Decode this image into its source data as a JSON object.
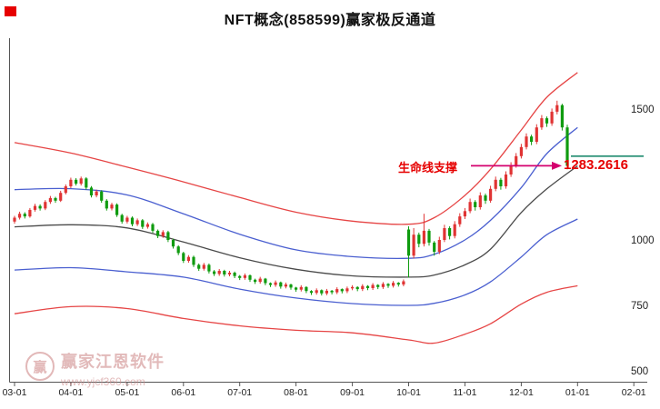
{
  "title": "NFT概念(858599)赢家极反通道",
  "annotation": {
    "label": "生命线支撑",
    "value": "1283.2616",
    "level": 1283.2616,
    "text_color": "#e60000",
    "arrow_color": "#d4006e"
  },
  "level_line": {
    "value": 1320,
    "color": "#1e8a6e"
  },
  "watermark": {
    "logo_char": "赢",
    "name": "赢家江恩软件",
    "url": "www.yjcf360.com"
  },
  "chart_data": {
    "type": "candlestick",
    "title": "NFT概念(858599)赢家极反通道",
    "ylim": [
      450,
      1700
    ],
    "grid": false,
    "colors": {
      "up": "#e03333",
      "down": "#0f9b0f",
      "axis": "#555555"
    },
    "y_axis": {
      "ticks": [
        1500,
        1000,
        750,
        500
      ]
    },
    "x_axis": {
      "tick_labels": [
        "03-01",
        "04-01",
        "05-01",
        "06-01",
        "07-01",
        "08-01",
        "09-01",
        "10-01",
        "11-01",
        "12-01",
        "01-01",
        "02-01"
      ],
      "tick_indices": [
        0,
        11,
        22,
        33,
        44,
        55,
        66,
        77,
        88,
        99,
        110,
        121
      ]
    },
    "channel_anchor_indices": [
      0,
      11,
      22,
      33,
      44,
      55,
      66,
      77,
      82,
      88,
      93,
      99,
      104,
      110
    ],
    "channels": [
      {
        "name": "outer-upper",
        "color": "#e64545",
        "values": [
          1372,
          1332,
          1278,
          1222,
          1162,
          1106,
          1072,
          1060,
          1085,
          1170,
          1270,
          1420,
          1545,
          1640
        ]
      },
      {
        "name": "inner-upper",
        "color": "#4a5fd0",
        "values": [
          1192,
          1196,
          1172,
          1100,
          1022,
          962,
          936,
          930,
          945,
          1000,
          1075,
          1200,
          1330,
          1430
        ]
      },
      {
        "name": "life-line",
        "color": "#4a4a4a",
        "values": [
          1050,
          1058,
          1046,
          992,
          932,
          888,
          863,
          858,
          866,
          905,
          965,
          1105,
          1195,
          1283
        ]
      },
      {
        "name": "inner-lower",
        "color": "#4a5fd0",
        "values": [
          885,
          894,
          878,
          858,
          812,
          778,
          757,
          750,
          758,
          790,
          840,
          935,
          1020,
          1080
        ]
      },
      {
        "name": "outer-lower",
        "color": "#e64545",
        "values": [
          718,
          745,
          738,
          700,
          672,
          655,
          645,
          618,
          606,
          640,
          680,
          755,
          800,
          825
        ]
      }
    ],
    "candles": [
      [
        1070,
        1092,
        1062,
        1085
      ],
      [
        1085,
        1108,
        1078,
        1100
      ],
      [
        1100,
        1106,
        1082,
        1090
      ],
      [
        1090,
        1122,
        1085,
        1115
      ],
      [
        1115,
        1138,
        1108,
        1130
      ],
      [
        1130,
        1136,
        1112,
        1120
      ],
      [
        1120,
        1152,
        1114,
        1145
      ],
      [
        1145,
        1168,
        1138,
        1160
      ],
      [
        1160,
        1165,
        1142,
        1150
      ],
      [
        1150,
        1188,
        1145,
        1180
      ],
      [
        1180,
        1212,
        1174,
        1205
      ],
      [
        1205,
        1238,
        1198,
        1230
      ],
      [
        1230,
        1236,
        1208,
        1215
      ],
      [
        1215,
        1242,
        1208,
        1235
      ],
      [
        1235,
        1240,
        1192,
        1200
      ],
      [
        1200,
        1206,
        1162,
        1170
      ],
      [
        1170,
        1192,
        1163,
        1185
      ],
      [
        1185,
        1190,
        1142,
        1150
      ],
      [
        1150,
        1156,
        1112,
        1120
      ],
      [
        1120,
        1142,
        1113,
        1135
      ],
      [
        1135,
        1140,
        1088,
        1095
      ],
      [
        1095,
        1100,
        1062,
        1070
      ],
      [
        1070,
        1092,
        1063,
        1085
      ],
      [
        1085,
        1090,
        1052,
        1060
      ],
      [
        1060,
        1082,
        1053,
        1075
      ],
      [
        1075,
        1080,
        1042,
        1050
      ],
      [
        1050,
        1067,
        1043,
        1060
      ],
      [
        1060,
        1065,
        1027,
        1035
      ],
      [
        1035,
        1040,
        1007,
        1015
      ],
      [
        1015,
        1037,
        1008,
        1030
      ],
      [
        1030,
        1035,
        992,
        1000
      ],
      [
        1000,
        1005,
        967,
        975
      ],
      [
        975,
        980,
        942,
        950
      ],
      [
        950,
        955,
        912,
        920
      ],
      [
        920,
        942,
        913,
        935
      ],
      [
        935,
        940,
        897,
        905
      ],
      [
        905,
        910,
        882,
        890
      ],
      [
        890,
        912,
        883,
        905
      ],
      [
        905,
        910,
        872,
        880
      ],
      [
        880,
        885,
        862,
        870
      ],
      [
        870,
        889,
        863,
        882
      ],
      [
        882,
        886,
        860,
        868
      ],
      [
        868,
        882,
        861,
        875
      ],
      [
        875,
        879,
        854,
        862
      ],
      [
        862,
        866,
        847,
        855
      ],
      [
        855,
        872,
        848,
        865
      ],
      [
        865,
        868,
        840,
        848
      ],
      [
        848,
        852,
        832,
        840
      ],
      [
        840,
        859,
        833,
        852
      ],
      [
        852,
        855,
        827,
        835
      ],
      [
        835,
        838,
        820,
        828
      ],
      [
        828,
        845,
        821,
        838
      ],
      [
        838,
        841,
        814,
        822
      ],
      [
        822,
        837,
        815,
        830
      ],
      [
        830,
        833,
        810,
        818
      ],
      [
        818,
        821,
        802,
        810
      ],
      [
        810,
        827,
        803,
        820
      ],
      [
        820,
        823,
        797,
        805
      ],
      [
        805,
        808,
        790,
        798
      ],
      [
        798,
        815,
        791,
        808
      ],
      [
        808,
        811,
        788,
        796
      ],
      [
        796,
        813,
        789,
        806
      ],
      [
        806,
        809,
        792,
        800
      ],
      [
        800,
        819,
        793,
        812
      ],
      [
        812,
        815,
        796,
        804
      ],
      [
        804,
        822,
        797,
        815
      ],
      [
        815,
        827,
        808,
        820
      ],
      [
        820,
        823,
        804,
        812
      ],
      [
        812,
        831,
        805,
        824
      ],
      [
        824,
        827,
        808,
        816
      ],
      [
        816,
        835,
        809,
        828
      ],
      [
        828,
        831,
        812,
        820
      ],
      [
        820,
        839,
        813,
        832
      ],
      [
        832,
        835,
        817,
        825
      ],
      [
        825,
        843,
        818,
        836
      ],
      [
        836,
        839,
        822,
        830
      ],
      [
        830,
        849,
        823,
        842
      ],
      [
        1040,
        1052,
        856,
        940
      ],
      [
        940,
        1045,
        930,
        1020
      ],
      [
        1020,
        1028,
        972,
        985
      ],
      [
        985,
        1100,
        975,
        1035
      ],
      [
        1035,
        1042,
        978,
        990
      ],
      [
        990,
        996,
        940,
        955
      ],
      [
        955,
        1012,
        946,
        1000
      ],
      [
        1000,
        1058,
        992,
        1045
      ],
      [
        1045,
        1052,
        1002,
        1015
      ],
      [
        1015,
        1072,
        1006,
        1060
      ],
      [
        1060,
        1102,
        1050,
        1090
      ],
      [
        1090,
        1122,
        1080,
        1110
      ],
      [
        1110,
        1158,
        1102,
        1145
      ],
      [
        1145,
        1152,
        1112,
        1125
      ],
      [
        1125,
        1182,
        1116,
        1170
      ],
      [
        1170,
        1177,
        1138,
        1150
      ],
      [
        1150,
        1207,
        1142,
        1195
      ],
      [
        1195,
        1242,
        1186,
        1230
      ],
      [
        1230,
        1237,
        1192,
        1205
      ],
      [
        1205,
        1262,
        1196,
        1250
      ],
      [
        1250,
        1297,
        1241,
        1285
      ],
      [
        1285,
        1332,
        1276,
        1320
      ],
      [
        1320,
        1367,
        1311,
        1355
      ],
      [
        1355,
        1407,
        1346,
        1395
      ],
      [
        1395,
        1402,
        1362,
        1375
      ],
      [
        1375,
        1442,
        1366,
        1430
      ],
      [
        1430,
        1477,
        1421,
        1465
      ],
      [
        1465,
        1472,
        1432,
        1445
      ],
      [
        1445,
        1502,
        1436,
        1490
      ],
      [
        1490,
        1532,
        1480,
        1515
      ],
      [
        1515,
        1520,
        1418,
        1430
      ],
      [
        1430,
        1440,
        1270,
        1283
      ]
    ]
  }
}
